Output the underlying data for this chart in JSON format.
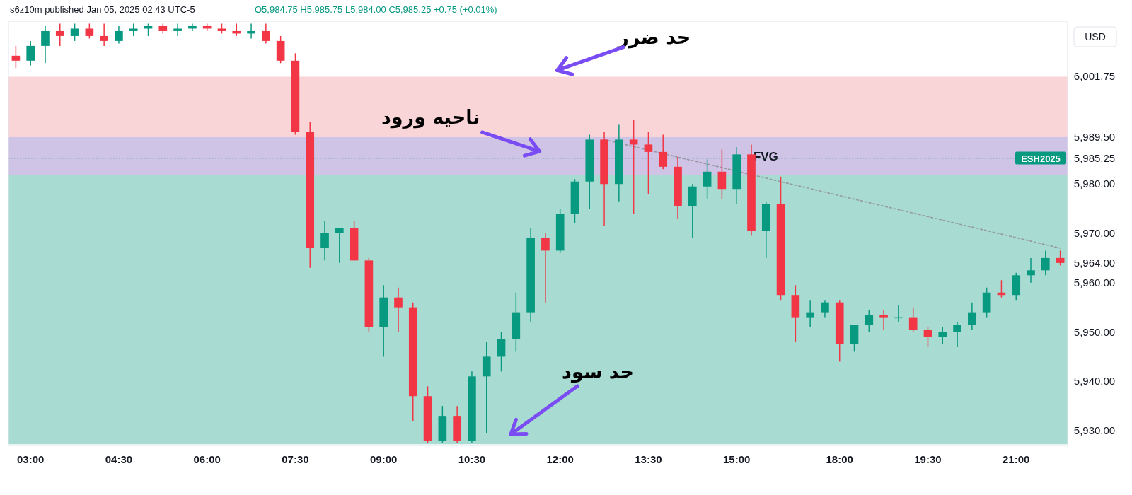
{
  "chart_data": {
    "type": "candlestick",
    "title": "s6z10m published Jan 05, 2025 02:43 UTC-5",
    "subtitle": "O5,984.75 H5,985.75 L5,984.00 C5,985.25 +0.75 (+0.01%)",
    "categories": [
      null,
      "03:00",
      null,
      null,
      null,
      null,
      null,
      "04:30",
      null,
      null,
      null,
      null,
      null,
      "06:00",
      null,
      null,
      null,
      null,
      null,
      "07:30",
      null,
      null,
      null,
      null,
      null,
      "09:00",
      null,
      null,
      null,
      null,
      null,
      "10:30",
      null,
      null,
      null,
      null,
      null,
      "12:00",
      null,
      null,
      null,
      null,
      null,
      "13:30",
      null,
      null,
      null,
      null,
      null,
      "15:00",
      null,
      null,
      null,
      null,
      null,
      null,
      "18:00",
      null,
      null,
      null,
      null,
      null,
      "19:30",
      null,
      null,
      null,
      null,
      null,
      "21:00",
      null,
      null,
      null
    ],
    "ohlc": [
      [
        6006,
        6008,
        6003.5,
        6005
      ],
      [
        6005,
        6009,
        6004,
        6008
      ],
      [
        6008,
        6012,
        6004.5,
        6011
      ],
      [
        6011,
        6012.5,
        6008,
        6010
      ],
      [
        6010,
        6012.5,
        6009,
        6011.5
      ],
      [
        6011.5,
        6012.5,
        6009.5,
        6010
      ],
      [
        6010,
        6012.5,
        6008,
        6009
      ],
      [
        6009,
        6012,
        6008.5,
        6011
      ],
      [
        6011,
        6012.5,
        6010,
        6011.5
      ],
      [
        6011.5,
        6012.5,
        6010,
        6012
      ],
      [
        6012,
        6012.5,
        6010.5,
        6011
      ],
      [
        6011,
        6012.5,
        6010,
        6011.5
      ],
      [
        6011.5,
        6012.5,
        6011,
        6012
      ],
      [
        6012,
        6012.5,
        6011,
        6011.5
      ],
      [
        6011.5,
        6012.5,
        6010.5,
        6011
      ],
      [
        6011,
        6012.5,
        6010,
        6010.5
      ],
      [
        6010.5,
        6012.5,
        6009.5,
        6011
      ],
      [
        6011,
        6012.5,
        6008.5,
        6009
      ],
      [
        6009,
        6010,
        6004.5,
        6005
      ],
      [
        6005,
        6006.5,
        5990,
        5990.5
      ],
      [
        5990.5,
        5992.5,
        5963,
        5967
      ],
      [
        5967,
        5972.5,
        5964.5,
        5970
      ],
      [
        5970,
        5971,
        5964,
        5971
      ],
      [
        5971,
        5972.5,
        5964.5,
        5964.5
      ],
      [
        5964.5,
        5965,
        5950,
        5951
      ],
      [
        5951,
        5959.5,
        5945,
        5957
      ],
      [
        5957,
        5959,
        5950,
        5955
      ],
      [
        5955,
        5956,
        5932,
        5937
      ],
      [
        5937,
        5939,
        5927.5,
        5928
      ],
      [
        5928,
        5935,
        5927.5,
        5933
      ],
      [
        5933,
        5935,
        5927.5,
        5928
      ],
      [
        5928,
        5942,
        5927.5,
        5941
      ],
      [
        5941,
        5948,
        5929.5,
        5945
      ],
      [
        5945,
        5950,
        5942,
        5948.5
      ],
      [
        5948.5,
        5958,
        5946,
        5954
      ],
      [
        5954,
        5971,
        5952,
        5969
      ],
      [
        5969,
        5970,
        5956,
        5966.5
      ],
      [
        5966.5,
        5975,
        5966,
        5974
      ],
      [
        5974,
        5981,
        5972,
        5980.5
      ],
      [
        5980.5,
        5990,
        5975,
        5989
      ],
      [
        5989,
        5990.5,
        5971.5,
        5980
      ],
      [
        5980,
        5992,
        5976.5,
        5989
      ],
      [
        5989,
        5993,
        5974,
        5988
      ],
      [
        5988,
        5990.5,
        5978,
        5986.5
      ],
      [
        5986.5,
        5990,
        5983,
        5983.5
      ],
      [
        5983.5,
        5985.5,
        5973,
        5975.5
      ],
      [
        5975.5,
        5980,
        5969,
        5979.5
      ],
      [
        5979.5,
        5985,
        5977,
        5982.5
      ],
      [
        5982.5,
        5987,
        5977,
        5979
      ],
      [
        5979,
        5987.5,
        5976,
        5986
      ],
      [
        5986,
        5988,
        5969.5,
        5970.5
      ],
      [
        5970.5,
        5976.5,
        5965,
        5976
      ],
      [
        5976,
        5981.5,
        5956.5,
        5957.5
      ],
      [
        5957.5,
        5959.5,
        5948,
        5953
      ],
      [
        5953,
        5956.5,
        5951,
        5954
      ],
      [
        5954,
        5956.5,
        5953,
        5956
      ],
      [
        5956,
        5956.5,
        5944,
        5947.5
      ],
      [
        5947.5,
        5951.5,
        5946,
        5951.5
      ],
      [
        5951.5,
        5954.5,
        5950,
        5953.5
      ],
      [
        5953.5,
        5954.5,
        5950.5,
        5953
      ],
      [
        5953,
        5955.5,
        5952,
        5953
      ],
      [
        5953,
        5955,
        5950,
        5950.5
      ],
      [
        5950.5,
        5951,
        5947,
        5949
      ],
      [
        5949,
        5951,
        5947.5,
        5950
      ],
      [
        5950,
        5952,
        5947,
        5951.5
      ],
      [
        5951.5,
        5956,
        5950.5,
        5954
      ],
      [
        5954,
        5959,
        5953,
        5958
      ],
      [
        5958,
        5960.5,
        5957,
        5957.5
      ],
      [
        5957.5,
        5962,
        5956.5,
        5961.5
      ],
      [
        5961.5,
        5965,
        5960,
        5962.5
      ],
      [
        5962.5,
        5966.5,
        5961.5,
        5965
      ],
      [
        5965,
        5966.5,
        5963.5,
        5964
      ]
    ],
    "ylim": [
      5927,
      6013
    ],
    "yticks": [
      {
        "value": 5930,
        "label": "5,930.00"
      },
      {
        "value": 5940,
        "label": "5,940.00"
      },
      {
        "value": 5950,
        "label": "5,950.00"
      },
      {
        "value": 5960,
        "label": "5,960.00"
      },
      {
        "value": 5964,
        "label": "5,964.00"
      },
      {
        "value": 5970,
        "label": "5,970.00"
      },
      {
        "value": 5980,
        "label": "5,980.00"
      },
      {
        "value": 5985.25,
        "label": "5,985.25"
      },
      {
        "value": 5989.5,
        "label": "5,989.50"
      },
      {
        "value": 6001.75,
        "label": "6,001.75"
      }
    ],
    "series": [
      {
        "type": "line",
        "values": [
          null,
          null,
          null,
          null,
          null,
          null,
          null,
          null,
          null,
          null,
          null,
          null,
          null,
          null,
          null,
          null,
          null,
          null,
          null,
          null,
          null,
          null,
          null,
          null,
          null,
          null,
          null,
          null,
          null,
          null,
          null,
          null,
          null,
          null,
          null,
          null,
          null,
          null,
          null,
          null,
          5989,
          null,
          null,
          null,
          null,
          null,
          null,
          null,
          null,
          null,
          null,
          null,
          null,
          null,
          null,
          null,
          null,
          null,
          null,
          null,
          null,
          null,
          null,
          null,
          null,
          null,
          null,
          null,
          null,
          null,
          null,
          5967
        ],
        "color": "#9598a1",
        "line_style": "dashed"
      }
    ],
    "bands": [
      {
        "axis": "y",
        "from": 5927.25,
        "to": 5989.5,
        "color": "#a8dcd2"
      },
      {
        "axis": "y",
        "from": 5989.5,
        "to": 6001.75,
        "color": "#f9d5d8"
      },
      {
        "axis": "y",
        "from": 5981.75,
        "to": 5989.5,
        "label": "FVG",
        "color": "#cfc3e6"
      }
    ],
    "ref_lines": [
      {
        "axis": "y",
        "value": 5985.25,
        "label": "ESH2025",
        "color": "#089981",
        "line_style": "dotted"
      }
    ],
    "annotations": [
      {
        "text": "حد ضرر",
        "y": 6001.75
      },
      {
        "text": "ناحیه ورود",
        "y": 5985.5
      },
      "حد سود",
      "USD"
    ]
  }
}
